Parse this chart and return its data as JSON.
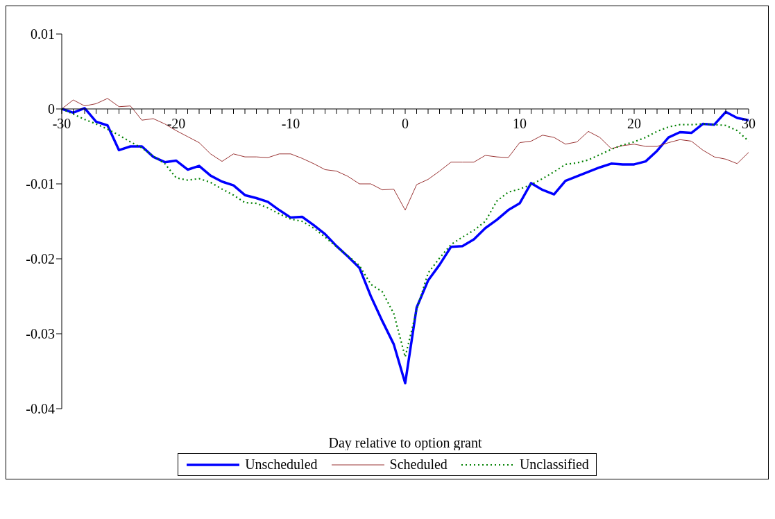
{
  "chart_data": {
    "type": "line",
    "xlabel": "Day relative to option grant",
    "x": [
      -30,
      -29,
      -28,
      -27,
      -26,
      -25,
      -24,
      -23,
      -22,
      -21,
      -20,
      -19,
      -18,
      -17,
      -16,
      -15,
      -14,
      -13,
      -12,
      -11,
      -10,
      -9,
      -8,
      -7,
      -6,
      -5,
      -4,
      -3,
      -2,
      -1,
      0,
      1,
      2,
      3,
      4,
      5,
      6,
      7,
      8,
      9,
      10,
      11,
      12,
      13,
      14,
      15,
      16,
      17,
      18,
      19,
      20,
      21,
      22,
      23,
      24,
      25,
      26,
      27,
      28,
      29,
      30
    ],
    "series": [
      {
        "name": "Unscheduled",
        "color": "#0000ff",
        "line_style": "solid",
        "values": [
          0,
          -0.0005,
          0.0001,
          -0.0017,
          -0.0022,
          -0.0055,
          -0.005,
          -0.005,
          -0.0064,
          -0.0071,
          -0.0069,
          -0.0081,
          -0.0076,
          -0.0089,
          -0.0097,
          -0.0102,
          -0.0115,
          -0.0119,
          -0.0124,
          -0.0135,
          -0.0145,
          -0.0144,
          -0.0155,
          -0.0167,
          -0.0183,
          -0.0197,
          -0.0212,
          -0.025,
          -0.0283,
          -0.0314,
          -0.0366,
          -0.0265,
          -0.0229,
          -0.0208,
          -0.0184,
          -0.0183,
          -0.0174,
          -0.0159,
          -0.0148,
          -0.0135,
          -0.0126,
          -0.0099,
          -0.0108,
          -0.0114,
          -0.0096,
          -0.009,
          -0.0084,
          -0.0078,
          -0.0073,
          -0.0074,
          -0.0074,
          -0.007,
          -0.0056,
          -0.0038,
          -0.0031,
          -0.0032,
          -0.002,
          -0.0021,
          -0.0004,
          -0.0012,
          -0.0015
        ]
      },
      {
        "name": "Scheduled",
        "color": "#993333",
        "line_style": "solid",
        "values": [
          0,
          0.0012,
          0.0004,
          0.0007,
          0.0014,
          0.0003,
          0.0004,
          -0.0015,
          -0.0013,
          -0.002,
          -0.0029,
          -0.0037,
          -0.0045,
          -0.006,
          -0.007,
          -0.006,
          -0.0064,
          -0.0064,
          -0.0065,
          -0.006,
          -0.006,
          -0.0066,
          -0.0073,
          -0.0081,
          -0.0083,
          -0.009,
          -0.01,
          -0.01,
          -0.0108,
          -0.0107,
          -0.0135,
          -0.0101,
          -0.0094,
          -0.0083,
          -0.0071,
          -0.0071,
          -0.0071,
          -0.0062,
          -0.0064,
          -0.0065,
          -0.0045,
          -0.0043,
          -0.0035,
          -0.0038,
          -0.0047,
          -0.0044,
          -0.003,
          -0.0038,
          -0.0053,
          -0.0049,
          -0.0047,
          -0.005,
          -0.005,
          -0.0045,
          -0.0041,
          -0.0043,
          -0.0055,
          -0.0064,
          -0.0067,
          -0.0073,
          -0.0058
        ]
      },
      {
        "name": "Unclassified",
        "color": "#008000",
        "line_style": "dotted",
        "values": [
          0,
          -0.0007,
          -0.0014,
          -0.002,
          -0.0027,
          -0.0035,
          -0.0044,
          -0.0052,
          -0.0063,
          -0.0073,
          -0.0092,
          -0.0095,
          -0.0093,
          -0.0098,
          -0.0107,
          -0.0115,
          -0.0125,
          -0.0126,
          -0.0132,
          -0.014,
          -0.0147,
          -0.015,
          -0.0159,
          -0.0171,
          -0.0184,
          -0.0196,
          -0.0209,
          -0.0234,
          -0.0244,
          -0.0273,
          -0.0331,
          -0.0268,
          -0.0219,
          -0.0199,
          -0.0181,
          -0.0171,
          -0.0162,
          -0.015,
          -0.0123,
          -0.0111,
          -0.0107,
          -0.0101,
          -0.0093,
          -0.0084,
          -0.0074,
          -0.0072,
          -0.0068,
          -0.0061,
          -0.0054,
          -0.0048,
          -0.0044,
          -0.0038,
          -0.003,
          -0.0024,
          -0.0021,
          -0.0021,
          -0.002,
          -0.0021,
          -0.0022,
          -0.0029,
          -0.0043
        ]
      }
    ],
    "xlim": [
      -30,
      30
    ],
    "xticks": [
      -30,
      {
        "value": -29,
        "label": null
      },
      {
        "value": -28,
        "label": null
      },
      {
        "value": -27,
        "label": null
      },
      {
        "value": -26,
        "label": null
      },
      {
        "value": -25,
        "label": null
      },
      {
        "value": -24,
        "label": null
      },
      {
        "value": -23,
        "label": null
      },
      {
        "value": -22,
        "label": null
      },
      {
        "value": -21,
        "label": null
      },
      -20,
      {
        "value": -19,
        "label": null
      },
      {
        "value": -18,
        "label": null
      },
      {
        "value": -17,
        "label": null
      },
      {
        "value": -16,
        "label": null
      },
      {
        "value": -15,
        "label": null
      },
      {
        "value": -14,
        "label": null
      },
      {
        "value": -13,
        "label": null
      },
      {
        "value": -12,
        "label": null
      },
      {
        "value": -11,
        "label": null
      },
      -10,
      {
        "value": -9,
        "label": null
      },
      {
        "value": -8,
        "label": null
      },
      {
        "value": -7,
        "label": null
      },
      {
        "value": -6,
        "label": null
      },
      {
        "value": -5,
        "label": null
      },
      {
        "value": -4,
        "label": null
      },
      {
        "value": -3,
        "label": null
      },
      {
        "value": -2,
        "label": null
      },
      {
        "value": -1,
        "label": null
      },
      0,
      {
        "value": 1,
        "label": null
      },
      {
        "value": 2,
        "label": null
      },
      {
        "value": 3,
        "label": null
      },
      {
        "value": 4,
        "label": null
      },
      {
        "value": 5,
        "label": null
      },
      {
        "value": 6,
        "label": null
      },
      {
        "value": 7,
        "label": null
      },
      {
        "value": 8,
        "label": null
      },
      {
        "value": 9,
        "label": null
      },
      10,
      {
        "value": 11,
        "label": null
      },
      {
        "value": 12,
        "label": null
      },
      {
        "value": 13,
        "label": null
      },
      {
        "value": 14,
        "label": null
      },
      {
        "value": 15,
        "label": null
      },
      {
        "value": 16,
        "label": null
      },
      {
        "value": 17,
        "label": null
      },
      {
        "value": 18,
        "label": null
      },
      {
        "value": 19,
        "label": null
      },
      20,
      {
        "value": 21,
        "label": null
      },
      {
        "value": 22,
        "label": null
      },
      {
        "value": 23,
        "label": null
      },
      {
        "value": 24,
        "label": null
      },
      {
        "value": 25,
        "label": null
      },
      {
        "value": 26,
        "label": null
      },
      {
        "value": 27,
        "label": null
      },
      {
        "value": 28,
        "label": null
      },
      {
        "value": 29,
        "label": null
      },
      30
    ],
    "ylim": [
      -0.04,
      0.01
    ],
    "yticks": [
      0.01,
      0,
      -0.01,
      -0.02,
      -0.03,
      -0.04
    ],
    "grid": false,
    "legend": "bottom",
    "marker": "none"
  }
}
